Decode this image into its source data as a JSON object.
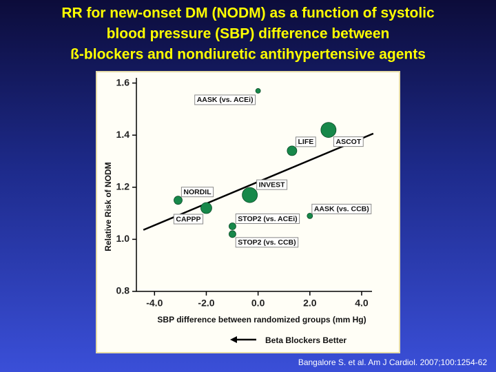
{
  "chart_data": {
    "type": "scatter",
    "title": [
      "RR for new-onset DM (NODM) as a function of systolic",
      "blood pressure (SBP) difference between",
      "ß-blockers and nondiuretic antihypertensive agents"
    ],
    "xlabel": "SBP difference between randomized groups (mm Hg)",
    "ylabel": "Relative Risk of NODM",
    "annotation": "Beta Blockers Better",
    "source": "Bangalore S. et al. Am J Cardiol. 2007;100:1254-62",
    "labels": [
      "AASK (vs. ACEi)",
      "ASCOT",
      "LIFE",
      "INVEST",
      "NORDIL",
      "CAPPP",
      "STOP2 (vs. ACEi)",
      "STOP2 (vs. CCB)",
      "AASK (vs. CCB)"
    ],
    "x": [
      0.0,
      2.72,
      1.31,
      -0.32,
      -3.09,
      -2.0,
      -0.99,
      -0.99,
      2.0
    ],
    "values": [
      1.57,
      1.42,
      1.34,
      1.17,
      1.15,
      1.12,
      1.05,
      1.02,
      1.09
    ],
    "sizes": [
      3.5,
      11,
      7,
      11,
      6,
      8,
      5,
      5,
      4
    ],
    "color": "#17884a",
    "trend_line": {
      "x": [
        -4.43,
        4.45
      ],
      "y": [
        1.036,
        1.406
      ],
      "color": "#000000"
    },
    "xlim": [
      -4.7,
      4.4
    ],
    "ylim": [
      0.8,
      1.62
    ],
    "xticks": [
      {
        "value": -4,
        "label": "-4.0"
      },
      {
        "value": -2,
        "label": "-2.0"
      },
      {
        "value": 0,
        "label": "0.0"
      },
      {
        "value": 2,
        "label": "2.0"
      },
      {
        "value": 4,
        "label": "4.0"
      }
    ],
    "yticks": [
      0.8,
      {
        "value": 1,
        "label": "1.0"
      },
      1.2,
      1.4,
      1.6
    ]
  }
}
